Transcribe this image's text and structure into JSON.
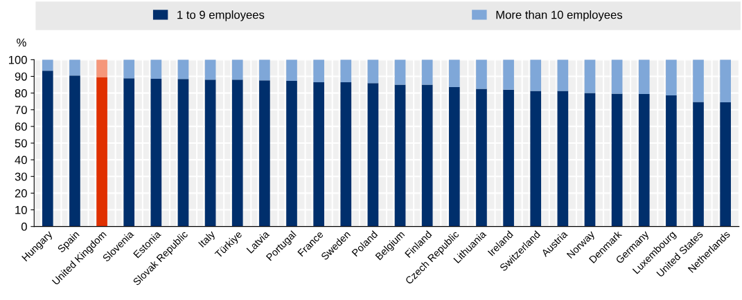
{
  "chart_data": {
    "type": "bar",
    "stacked": true,
    "ylabel": "%",
    "legend": "top",
    "grid": true,
    "categories": [
      "Hungary",
      "Spain",
      "United Kingdom",
      "Slovenia",
      "Estonia",
      "Slovak Republic",
      "Italy",
      "Türkiye",
      "Latvia",
      "Portugal",
      "France",
      "Sweden",
      "Poland",
      "Belgium",
      "Finland",
      "Czech Republic",
      "Lithuania",
      "Ireland",
      "Switzerland",
      "Austria",
      "Norway",
      "Denmark",
      "Germany",
      "Luxembourg",
      "United States",
      "Netherlands"
    ],
    "series": [
      {
        "name": "1 to 9 employees",
        "color": "#002f6c",
        "colors": [
          "#002f6c",
          "#002f6c",
          "#e03000",
          "#002f6c",
          "#002f6c",
          "#002f6c",
          "#002f6c",
          "#002f6c",
          "#002f6c",
          "#002f6c",
          "#002f6c",
          "#002f6c",
          "#002f6c",
          "#002f6c",
          "#002f6c",
          "#002f6c",
          "#002f6c",
          "#002f6c",
          "#002f6c",
          "#002f6c",
          "#002f6c",
          "#002f6c",
          "#002f6c",
          "#002f6c",
          "#002f6c",
          "#002f6c"
        ],
        "values": [
          93.4,
          90.5,
          89.6,
          88.9,
          88.5,
          88.4,
          88.0,
          88.0,
          87.6,
          87.3,
          86.5,
          86.5,
          86.0,
          85.0,
          85.0,
          83.6,
          82.5,
          82.0,
          81.3,
          81.3,
          80.1,
          79.6,
          79.4,
          78.6,
          74.7,
          74.5
        ]
      },
      {
        "name": "More than 10 employees",
        "color": "#7fa7d8",
        "colors": [
          "#7fa7d8",
          "#7fa7d8",
          "#f5977a",
          "#7fa7d8",
          "#7fa7d8",
          "#7fa7d8",
          "#7fa7d8",
          "#7fa7d8",
          "#7fa7d8",
          "#7fa7d8",
          "#7fa7d8",
          "#7fa7d8",
          "#7fa7d8",
          "#7fa7d8",
          "#7fa7d8",
          "#7fa7d8",
          "#7fa7d8",
          "#7fa7d8",
          "#7fa7d8",
          "#7fa7d8",
          "#7fa7d8",
          "#7fa7d8",
          "#7fa7d8",
          "#7fa7d8",
          "#7fa7d8",
          "#7fa7d8"
        ],
        "values": [
          6.6,
          9.5,
          10.4,
          11.1,
          11.5,
          11.6,
          12.0,
          12.0,
          12.4,
          12.7,
          13.5,
          13.5,
          14.0,
          15.0,
          15.0,
          16.4,
          17.5,
          18.0,
          18.7,
          18.7,
          19.9,
          20.4,
          20.6,
          21.4,
          25.3,
          25.5
        ]
      }
    ],
    "ylim": [
      0,
      100
    ],
    "yticks": [
      0,
      10,
      20,
      30,
      40,
      50,
      60,
      70,
      80,
      90,
      100
    ]
  }
}
